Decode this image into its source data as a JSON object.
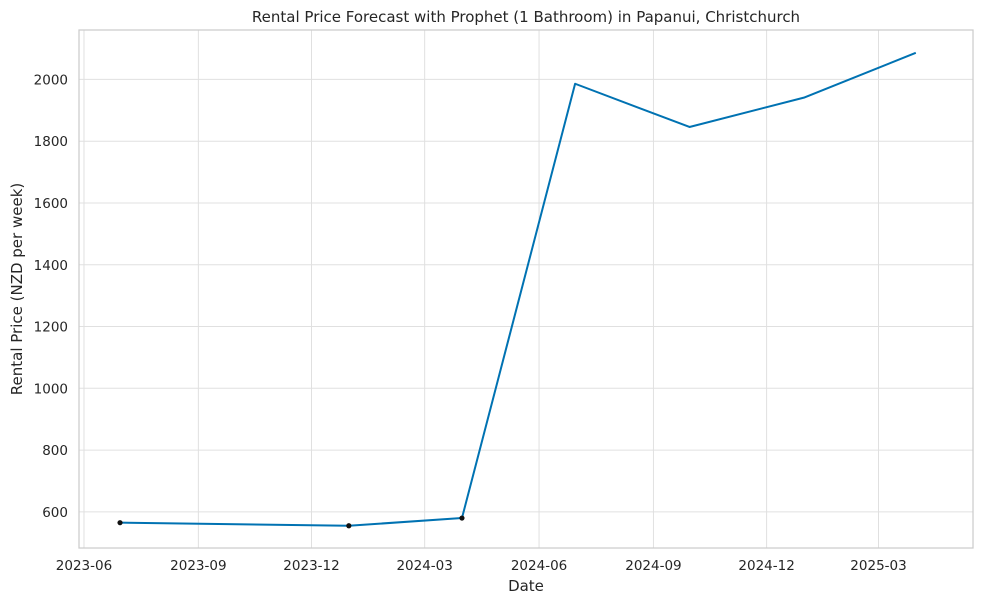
{
  "chart_data": {
    "type": "line",
    "title": "Rental Price Forecast with Prophet (1 Bathroom) in Papanui, Christchurch",
    "xlabel": "Date",
    "ylabel": "Rental Price (NZD per week)",
    "x_tick_labels": [
      "2023-06",
      "2023-09",
      "2023-12",
      "2024-03",
      "2024-06",
      "2024-09",
      "2024-12",
      "2025-03"
    ],
    "y_tick_labels": [
      "600",
      "800",
      "1000",
      "1200",
      "1400",
      "1600",
      "1800",
      "2000"
    ],
    "y_ticks": [
      600,
      800,
      1000,
      1200,
      1400,
      1600,
      1800,
      2000
    ],
    "x_ticks": [
      "2023-06-01",
      "2023-09-01",
      "2023-12-01",
      "2024-03-01",
      "2024-06-01",
      "2024-09-01",
      "2024-12-01",
      "2025-03-01"
    ],
    "xlim": [
      "2023-05-28",
      "2025-05-16"
    ],
    "ylim": [
      483,
      2160
    ],
    "grid": true,
    "legend": "none",
    "series": [
      {
        "kind": "observed",
        "marker": "point",
        "color": "#111111",
        "points": [
          {
            "x": "2023-06-30",
            "y": 565
          },
          {
            "x": "2023-12-31",
            "y": 555
          },
          {
            "x": "2024-03-31",
            "y": 580
          }
        ]
      },
      {
        "kind": "forecast",
        "marker": "line",
        "color": "#0072b2",
        "points": [
          {
            "x": "2023-06-30",
            "y": 565
          },
          {
            "x": "2023-12-31",
            "y": 555
          },
          {
            "x": "2024-03-31",
            "y": 580
          },
          {
            "x": "2024-06-30",
            "y": 1986
          },
          {
            "x": "2024-09-30",
            "y": 1846
          },
          {
            "x": "2024-12-31",
            "y": 1941
          },
          {
            "x": "2025-03-31",
            "y": 2086
          }
        ]
      }
    ]
  }
}
